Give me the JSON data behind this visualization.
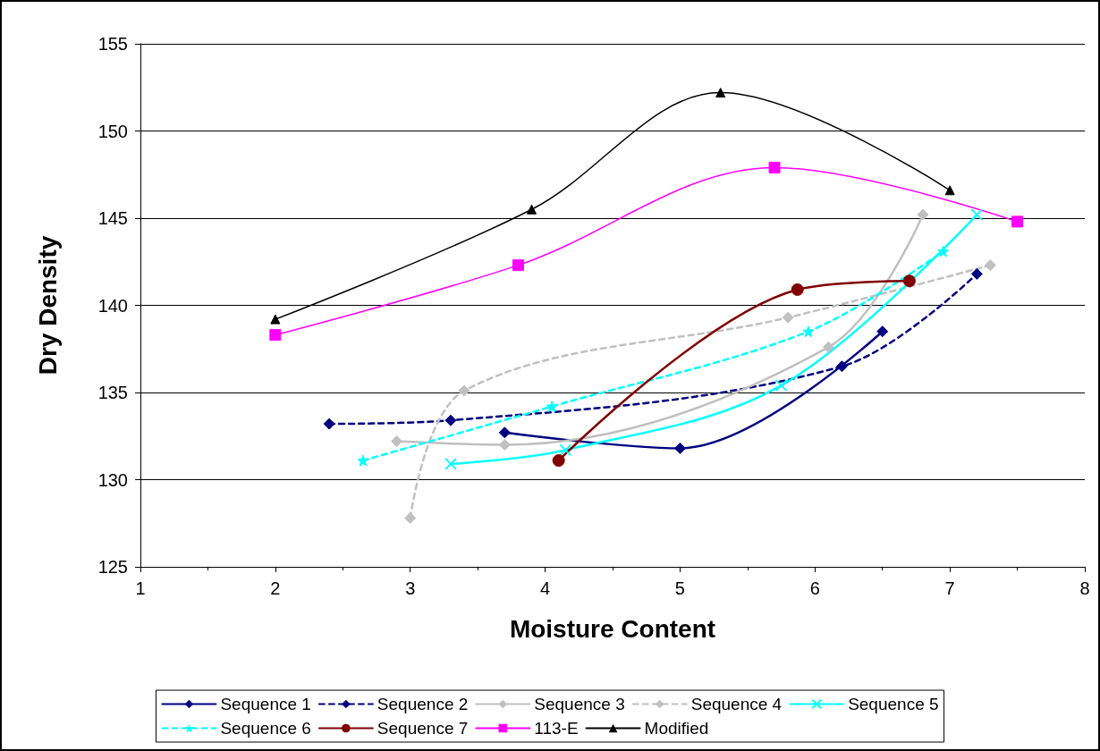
{
  "chart_data": {
    "type": "line",
    "xlabel": "Moisture Content",
    "ylabel": "Dry Density",
    "xlim": [
      1,
      8
    ],
    "xticks": [
      1,
      2,
      3,
      4,
      5,
      6,
      7,
      8
    ],
    "ylim": [
      125,
      155
    ],
    "yticks": [
      125,
      130,
      135,
      140,
      145,
      150,
      155
    ],
    "grid": "y",
    "legend": "bottom",
    "series": [
      {
        "name": "Sequence 1",
        "color": "#000080",
        "marker": "diamond",
        "line_style": "solid",
        "x": [
          3.7,
          5,
          6.5
        ],
        "values": [
          132.7,
          131.8,
          138.5
        ]
      },
      {
        "name": "Sequence 2",
        "color": "#000080",
        "marker": "diamond",
        "line_style": "dashed",
        "x": [
          2.4,
          3.3,
          6.2,
          7.2
        ],
        "values": [
          133.2,
          133.4,
          136.5,
          141.8
        ]
      },
      {
        "name": "Sequence 3",
        "color": "#c0c0c0",
        "marker": "diamond",
        "line_style": "solid",
        "x": [
          2.9,
          3.7,
          6.1,
          6.8
        ],
        "values": [
          132.2,
          132.0,
          137.6,
          145.2
        ]
      },
      {
        "name": "Sequence 4",
        "color": "#c0c0c0",
        "marker": "diamond",
        "line_style": "dashed",
        "x": [
          3.0,
          3.4,
          5.8,
          7.3
        ],
        "values": [
          127.8,
          135.1,
          139.3,
          142.3
        ]
      },
      {
        "name": "Sequence 5",
        "color": "#00ffff",
        "marker": "cross",
        "line_style": "solid",
        "x": [
          3.3,
          4.15,
          5.75,
          7.2
        ],
        "values": [
          130.9,
          131.7,
          135.4,
          145.2
        ]
      },
      {
        "name": "Sequence 6",
        "color": "#00ffff",
        "marker": "star",
        "line_style": "dashed",
        "x": [
          2.65,
          4.05,
          5.95,
          6.95
        ],
        "values": [
          131.1,
          134.2,
          138.5,
          143.1
        ]
      },
      {
        "name": "Sequence 7",
        "color": "#800000",
        "marker": "circle",
        "line_style": "solid",
        "x": [
          4.1,
          5.87,
          6.7
        ],
        "values": [
          131.1,
          140.9,
          141.4
        ]
      },
      {
        "name": "113-E",
        "color": "#ff00ff",
        "marker": "square",
        "line_style": "solid",
        "x": [
          2,
          3.8,
          5.7,
          7.5
        ],
        "values": [
          138.3,
          142.3,
          147.9,
          144.8
        ]
      },
      {
        "name": "Modified",
        "color": "#000000",
        "marker": "triangle",
        "line_style": "solid",
        "x": [
          2,
          3.9,
          5.3,
          7
        ],
        "values": [
          139.2,
          145.5,
          152.2,
          146.6
        ]
      }
    ]
  }
}
